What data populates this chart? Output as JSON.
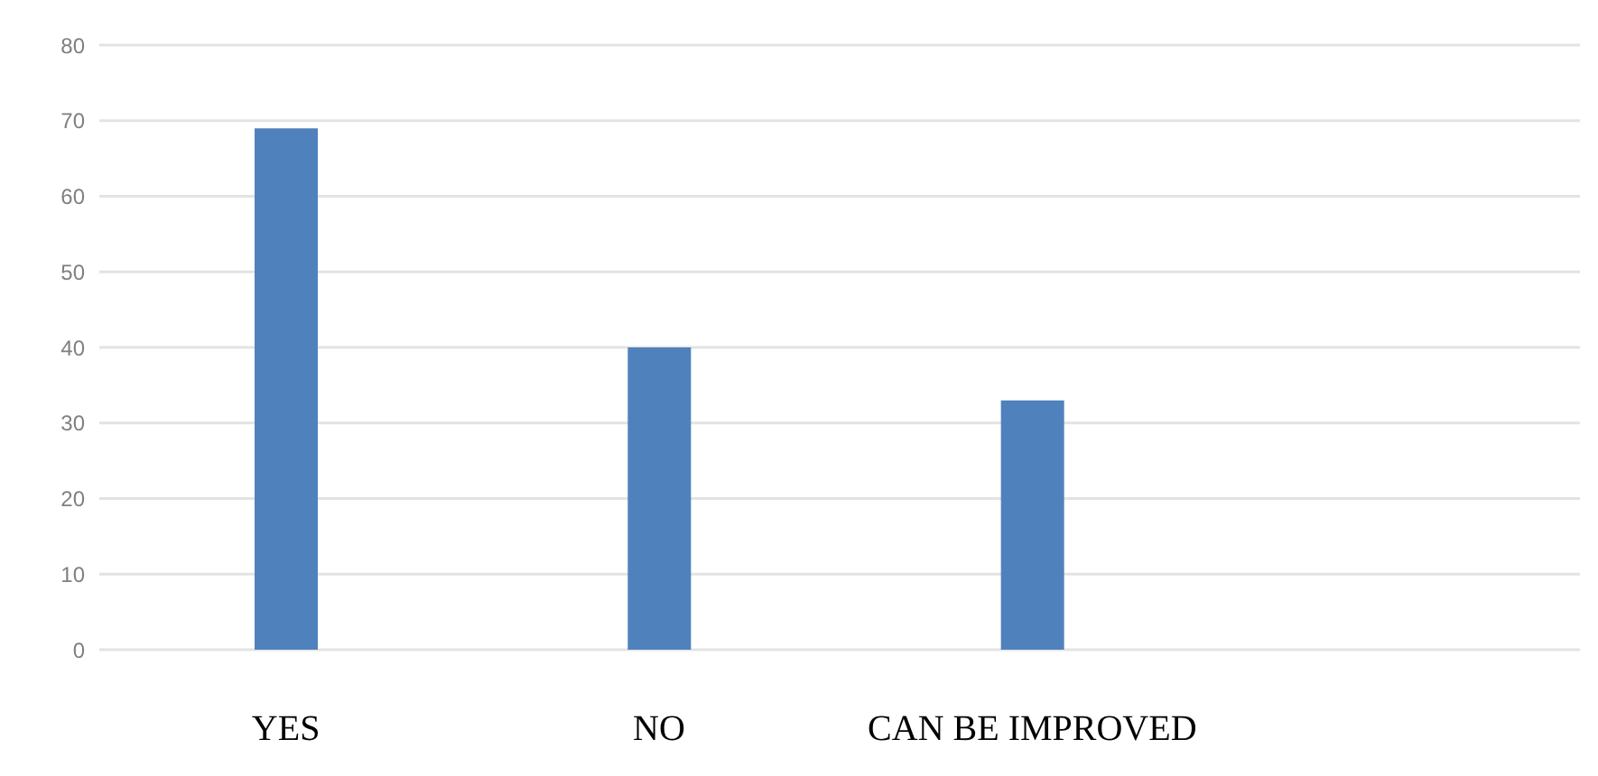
{
  "chart_data": {
    "type": "bar",
    "categories": [
      "YES",
      "NO",
      "CAN BE IMPROVED"
    ],
    "values": [
      69,
      40,
      33
    ],
    "color": "#4f81bd",
    "ylim": [
      0,
      80
    ],
    "yticks": [
      0,
      10,
      20,
      30,
      40,
      50,
      60,
      70,
      80
    ],
    "grid": "y",
    "legend": false
  }
}
